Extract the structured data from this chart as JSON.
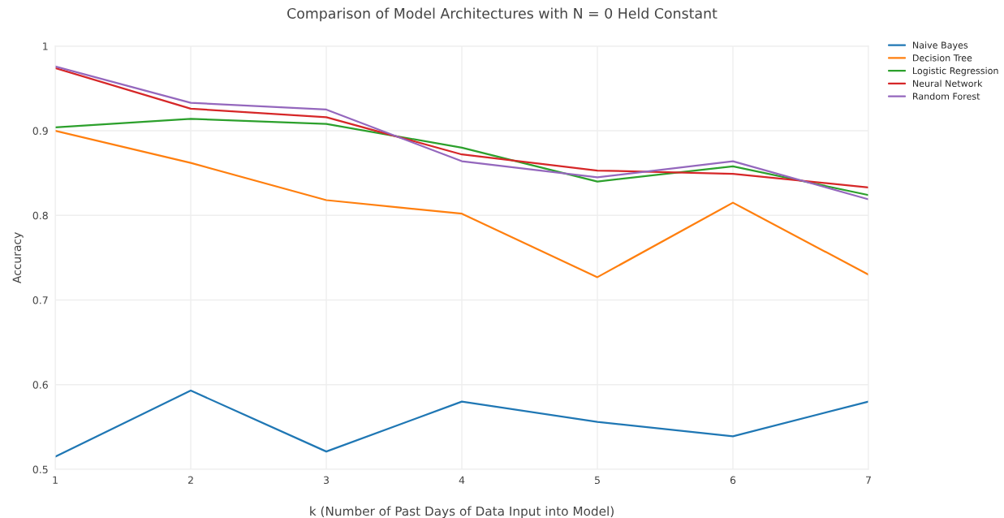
{
  "chart_data": {
    "type": "line",
    "title": "Comparison of Model Architectures with N = 0 Held Constant",
    "xlabel": "k (Number of Past Days of Data Input into Model)",
    "ylabel": "Accuracy",
    "x": [
      1,
      2,
      3,
      4,
      5,
      6,
      7
    ],
    "series": [
      {
        "name": "Naive Bayes",
        "color": "#1f77b4",
        "values": [
          0.515,
          0.593,
          0.521,
          0.58,
          0.556,
          0.539,
          0.58
        ]
      },
      {
        "name": "Decision Tree",
        "color": "#ff7f0e",
        "values": [
          0.9,
          0.862,
          0.818,
          0.802,
          0.727,
          0.815,
          0.73
        ]
      },
      {
        "name": "Logistic Regression",
        "color": "#2ca02c",
        "values": [
          0.904,
          0.914,
          0.908,
          0.88,
          0.84,
          0.858,
          0.824
        ]
      },
      {
        "name": "Neural Network",
        "color": "#d62728",
        "values": [
          0.974,
          0.926,
          0.916,
          0.872,
          0.853,
          0.849,
          0.833
        ]
      },
      {
        "name": "Random Forest",
        "color": "#9467bd",
        "values": [
          0.976,
          0.933,
          0.925,
          0.864,
          0.845,
          0.864,
          0.819
        ]
      }
    ],
    "xlim": [
      1,
      7
    ],
    "xticks": [
      1,
      2,
      3,
      4,
      5,
      6,
      7
    ],
    "ylim": [
      0.5,
      1
    ],
    "yticks": [
      0.5,
      0.6,
      0.7,
      0.8,
      0.9,
      1
    ],
    "grid": true,
    "legend": "top right",
    "marker": "none",
    "line_style": "solid"
  }
}
